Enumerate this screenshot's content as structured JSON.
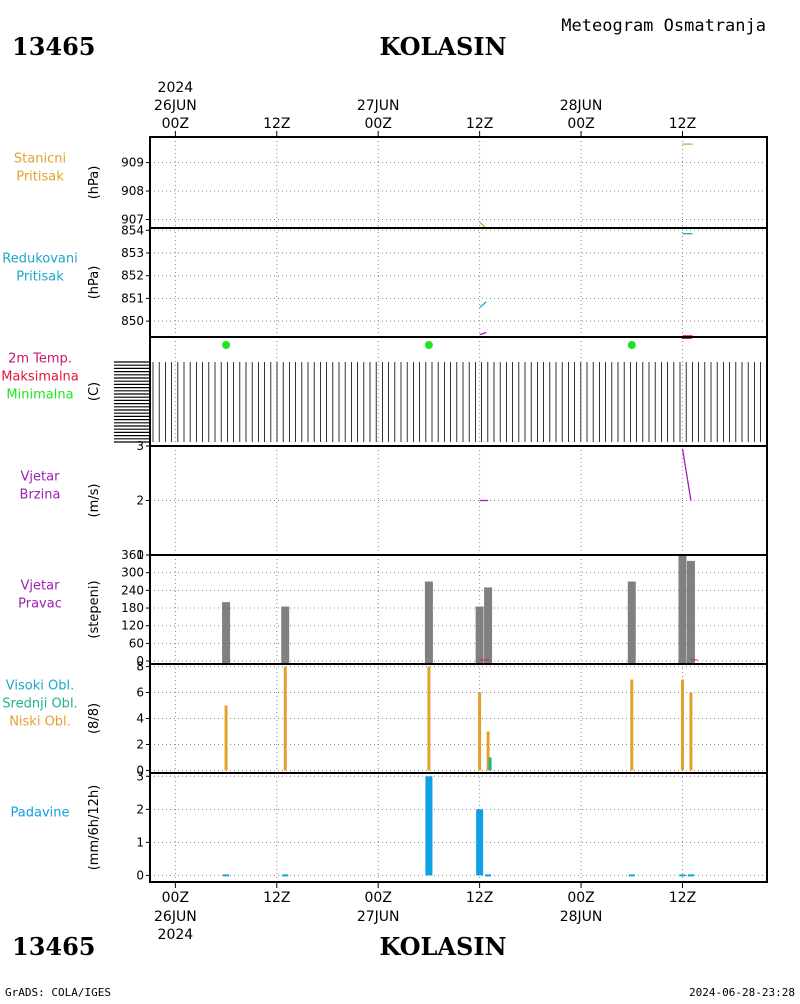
{
  "header": {
    "station_id": "13465",
    "station_name": "KOLASIN",
    "product": "Meteogram Osmatranja"
  },
  "footer": {
    "station_id": "13465",
    "station_name": "KOLASIN",
    "credit": "GrADS: COLA/IGES",
    "timestamp": "2024-06-28-23:28"
  },
  "time_axis": {
    "year": "2024",
    "ticks": [
      {
        "hours": 0,
        "hour_label": "00Z",
        "date_label": "26JUN",
        "show_year": true
      },
      {
        "hours": 12,
        "hour_label": "12Z",
        "date_label": "",
        "show_year": false
      },
      {
        "hours": 24,
        "hour_label": "00Z",
        "date_label": "27JUN",
        "show_year": false
      },
      {
        "hours": 36,
        "hour_label": "12Z",
        "date_label": "",
        "show_year": false
      },
      {
        "hours": 48,
        "hour_label": "00Z",
        "date_label": "28JUN",
        "show_year": false
      },
      {
        "hours": 60,
        "hour_label": "12Z",
        "date_label": "",
        "show_year": false
      }
    ],
    "range_hours": [
      -3,
      70
    ]
  },
  "colors": {
    "station_pressure": "#e5a02c",
    "reduced_pressure": "#1ea6c8",
    "temp_label": "#c8146e",
    "temp_max": "#e0143c",
    "temp_min": "#1ee61e",
    "wind": "#a01eb4",
    "wind_dir_bar": "#808080",
    "cloud_high": "#1ea6c8",
    "cloud_mid": "#1eb48c",
    "cloud_low": "#e5a02c",
    "precip": "#0fa0e6"
  },
  "chart_data": [
    {
      "type": "line",
      "panel": "station_pressure",
      "labels": [
        "Stanicni",
        "Pritisak"
      ],
      "ylabel": "(hPa)",
      "yticks": [
        907,
        908,
        909
      ],
      "ylim": [
        906.7,
        909.9
      ],
      "grid": true,
      "series": [
        {
          "points": [
            [
              36,
              906.9
            ],
            [
              36.6,
              906.75
            ]
          ]
        },
        {
          "points": [
            [
              60,
              909.65
            ],
            [
              61.2,
              909.65
            ]
          ]
        }
      ]
    },
    {
      "type": "line",
      "panel": "reduced_pressure",
      "labels": [
        "Redukovani",
        "Pritisak"
      ],
      "ylabel": "(hPa)",
      "yticks": [
        850,
        851,
        852,
        853,
        854
      ],
      "ylim": [
        849.3,
        854.1
      ],
      "grid": true,
      "series": [
        {
          "points": [
            [
              36,
              850.6
            ],
            [
              36.8,
              850.85
            ]
          ]
        },
        {
          "points": [
            [
              36,
              849.4
            ],
            [
              36.8,
              849.5
            ]
          ]
        },
        {
          "points": [
            [
              60,
              853.85
            ],
            [
              61.2,
              853.85
            ]
          ]
        },
        {
          "points": [
            [
              60,
              849.35
            ],
            [
              61.2,
              849.35
            ]
          ]
        }
      ]
    },
    {
      "type": "scatter",
      "panel": "temperature",
      "labels": [
        "2m Temp.",
        "Maksimalna",
        "Minimalna"
      ],
      "ylabel": "(C)",
      "grid": true,
      "series": [
        {
          "name": "Minimalna",
          "points": [
            [
              6,
              0
            ],
            [
              30,
              0
            ],
            [
              54,
              0
            ]
          ]
        },
        {
          "name": "Maksimalna",
          "points": [
            [
              60.5,
              0
            ]
          ]
        }
      ]
    },
    {
      "type": "line",
      "panel": "wind_speed",
      "labels": [
        "Vjetar",
        "Brzina"
      ],
      "ylabel": "(m/s)",
      "yticks": [
        1,
        2,
        3
      ],
      "ylim": [
        1,
        3
      ],
      "grid": true,
      "series": [
        {
          "points": [
            [
              36,
              2.0
            ],
            [
              37,
              2.0
            ]
          ]
        },
        {
          "points": [
            [
              60,
              2.95
            ],
            [
              61,
              2.0
            ]
          ]
        }
      ]
    },
    {
      "type": "bar",
      "panel": "wind_direction",
      "labels": [
        "Vjetar",
        "Pravac"
      ],
      "ylabel": "(stepeni)",
      "yticks": [
        0,
        60,
        120,
        180,
        240,
        300,
        360
      ],
      "ylim": [
        -10,
        360
      ],
      "grid": true,
      "x": [
        6,
        13,
        30,
        36,
        37,
        54,
        60,
        61
      ],
      "values": [
        200,
        185,
        270,
        185,
        250,
        270,
        360,
        340
      ]
    },
    {
      "type": "bar",
      "panel": "clouds",
      "labels": [
        "Visoki Obl.",
        "Srednji Obl.",
        "Niski Obl."
      ],
      "ylabel": "(8/8)",
      "yticks": [
        0,
        2,
        4,
        6,
        8
      ],
      "ylim": [
        -0.2,
        8.2
      ],
      "grid": true,
      "series": [
        {
          "name": "Niski Obl.",
          "x": [
            6,
            13,
            30,
            36,
            37,
            54,
            60,
            61
          ],
          "values": [
            5,
            8,
            8,
            6,
            3,
            7,
            7,
            6
          ]
        },
        {
          "name": "Srednji Obl.",
          "x": [
            37
          ],
          "values": [
            1
          ]
        }
      ]
    },
    {
      "type": "bar",
      "panel": "precipitation",
      "labels": [
        "Padavine"
      ],
      "ylabel": "(mm/6h/12h)",
      "yticks": [
        0,
        1,
        2,
        3
      ],
      "ylim": [
        -0.2,
        3.1
      ],
      "grid": true,
      "x": [
        6,
        13,
        30,
        36,
        37,
        54,
        60,
        61
      ],
      "values": [
        0.02,
        0.02,
        3.0,
        2.0,
        0.02,
        0.02,
        0.02,
        0.02
      ]
    }
  ]
}
